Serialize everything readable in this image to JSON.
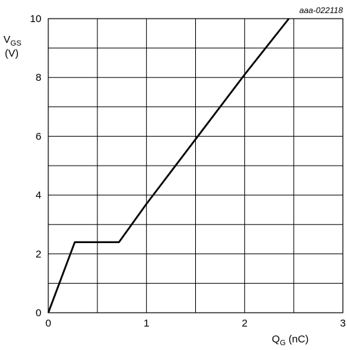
{
  "chart_data": {
    "type": "line",
    "reference": "aaa-022118",
    "ylabel": {
      "main": "V",
      "sub": "GS",
      "unit": "(V)"
    },
    "xlabel": {
      "main": "Q",
      "sub": "G",
      "unit": "(nC)"
    },
    "xlim": [
      0,
      3
    ],
    "ylim": [
      0,
      10
    ],
    "x_ticks": [
      0,
      1,
      2,
      3
    ],
    "y_ticks": [
      0,
      2,
      4,
      6,
      8,
      10
    ],
    "x_grid_step": 0.5,
    "y_grid_step": 1,
    "grid": true,
    "series": [
      {
        "x": [
          0,
          0.27,
          0.72,
          1.0,
          1.5,
          2.0,
          2.45
        ],
        "y": [
          0,
          2.4,
          2.4,
          3.7,
          5.9,
          8.1,
          10
        ]
      }
    ]
  }
}
